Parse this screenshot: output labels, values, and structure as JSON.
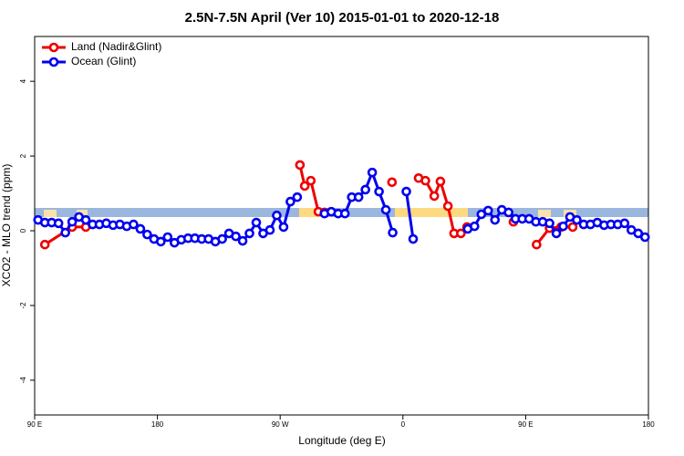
{
  "chart_data": {
    "type": "line",
    "title": "2.5N-7.5N April (Ver 10)   2015-01-01 to 2020-12-18",
    "xlabel": "Longitude (deg E)",
    "ylabel": "XCO2 - MLO trend (ppm)",
    "xlim": [
      90,
      540
    ],
    "ylim": [
      -4.93,
      5.2
    ],
    "xticks": [
      {
        "value": 90,
        "label": "90 E"
      },
      {
        "value": 180,
        "label": "180"
      },
      {
        "value": 270,
        "label": "90 W"
      },
      {
        "value": 360,
        "label": "0"
      },
      {
        "value": 450,
        "label": "90 E"
      },
      {
        "value": 540,
        "label": "180"
      }
    ],
    "yticks": [
      -4,
      -2,
      0,
      2,
      4
    ],
    "legend": "top-left",
    "series": [
      {
        "name": "Land (Nadir&Glint)",
        "color": "#ee0000",
        "x": [
          97.5,
          117.5,
          127.5,
          null,
          284.5,
          288,
          292.5,
          298,
          302.5,
          null,
          352,
          null,
          371.5,
          376.5,
          383,
          387.5,
          393,
          397.5,
          402.5,
          407,
          null,
          441,
          null,
          458,
          467.5,
          476,
          484.5
        ],
        "values": [
          -0.37,
          0.1,
          0.1,
          null,
          1.76,
          1.2,
          1.34,
          0.51,
          0.49,
          null,
          1.3,
          null,
          1.41,
          1.34,
          0.93,
          1.32,
          0.66,
          -0.07,
          -0.07,
          0.1,
          null,
          0.24,
          null,
          -0.37,
          0.07,
          0.1,
          0.1
        ]
      },
      {
        "name": "Ocean (Glint)",
        "color": "#0000ee",
        "x": [
          92.5,
          97.5,
          102.5,
          107.5,
          112.5,
          117.5,
          122.5,
          127.5,
          132.5,
          137.5,
          142.5,
          147.5,
          152.5,
          157.5,
          162.5,
          167.5,
          172.5,
          177.5,
          182.5,
          187.5,
          192.5,
          197.5,
          202.5,
          207.5,
          212.5,
          217.5,
          222.5,
          227.5,
          232.5,
          237.5,
          242.5,
          247.5,
          252.5,
          257.5,
          262.5,
          267.5,
          272.5,
          277.5,
          282.5,
          287.5,
          292.5,
          297.5,
          302.5,
          307.5,
          312.5,
          317.5,
          322.5,
          327.5,
          332.5,
          337.5,
          342.5,
          347.5,
          352.5,
          357.5,
          362.5,
          367.5,
          372.5,
          377.5,
          382.5,
          387.5,
          392.5,
          397.5,
          402.5,
          407.5,
          412.5,
          417.5,
          422.5,
          427.5,
          432.5,
          437.5,
          442.5,
          447.5,
          452.5,
          457.5,
          462.5,
          467.5,
          472.5,
          477.5,
          482.5,
          487.5,
          492.5,
          497.5,
          502.5,
          507.5,
          512.5,
          517.5,
          522.5,
          527.5,
          532.5,
          537.5
        ],
        "values": [
          0.29,
          0.22,
          0.22,
          0.2,
          -0.05,
          0.24,
          0.37,
          0.29,
          0.17,
          0.17,
          0.2,
          0.15,
          0.17,
          0.12,
          0.17,
          0.05,
          -0.1,
          -0.22,
          -0.29,
          -0.17,
          -0.32,
          -0.24,
          -0.2,
          -0.2,
          -0.22,
          -0.22,
          -0.29,
          -0.22,
          -0.07,
          -0.15,
          -0.27,
          -0.07,
          0.22,
          -0.07,
          0.02,
          0.41,
          0.1,
          0.78,
          0.9,
          null,
          null,
          null,
          0.46,
          0.51,
          0.46,
          0.46,
          0.9,
          0.9,
          1.1,
          1.56,
          1.05,
          0.56,
          -0.05,
          null,
          1.05,
          -0.22,
          null,
          null,
          null,
          null,
          null,
          null,
          null,
          0.05,
          0.12,
          0.44,
          0.54,
          0.29,
          0.56,
          0.49,
          0.32,
          0.32,
          0.32,
          0.24,
          0.24,
          0.2,
          -0.07,
          0.12,
          0.37,
          0.29,
          0.17,
          0.17,
          0.22,
          0.15,
          0.17,
          0.17,
          0.2,
          0.02,
          -0.07,
          -0.17
        ]
      }
    ]
  }
}
